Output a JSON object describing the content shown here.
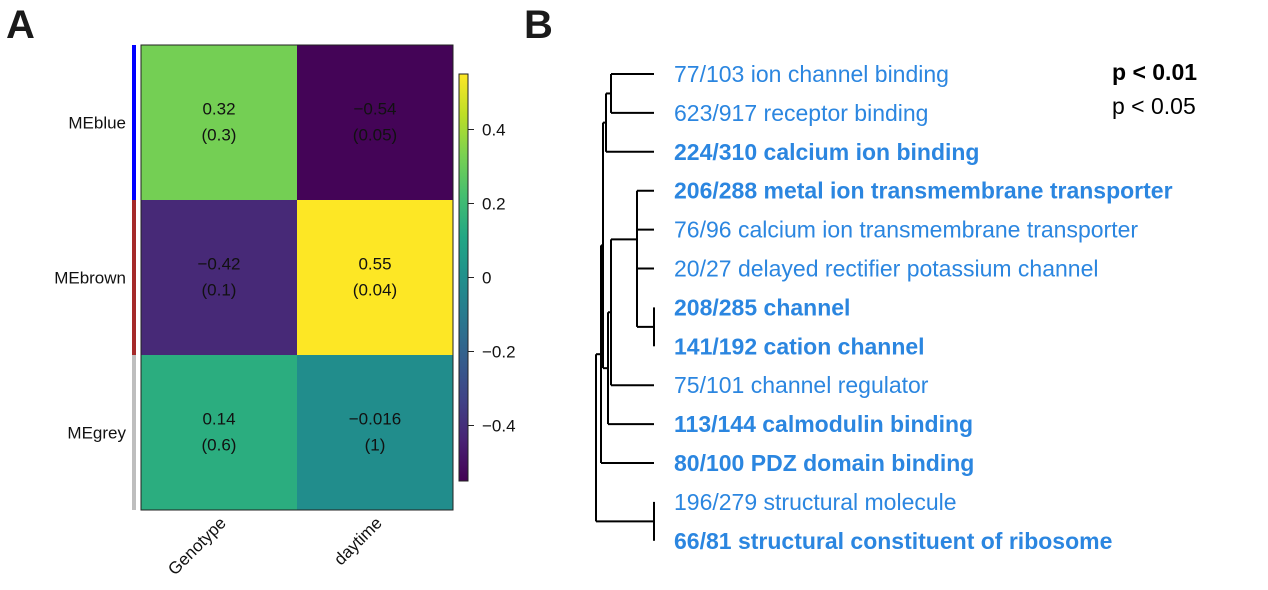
{
  "panels": {
    "a_label": "A",
    "b_label": "B"
  },
  "chart_data": [
    {
      "type": "heatmap",
      "rows": [
        "MEblue",
        "MEbrown",
        "MEgrey"
      ],
      "row_colors": [
        "#0000ff",
        "#a52a2a",
        "#bebebe"
      ],
      "columns": [
        "Genotype",
        "daytime"
      ],
      "values": [
        [
          0.32,
          -0.54
        ],
        [
          -0.42,
          0.55
        ],
        [
          0.14,
          -0.016
        ]
      ],
      "value_labels": [
        [
          "0.32",
          "−0.54"
        ],
        [
          "−0.42",
          "0.55"
        ],
        [
          "0.14",
          "−0.016"
        ]
      ],
      "pvalue_labels": [
        [
          "(0.3)",
          "(0.05)"
        ],
        [
          "(0.1)",
          "(0.04)"
        ],
        [
          "(0.6)",
          "(1)"
        ]
      ],
      "colorbar": {
        "colormap": "viridis",
        "range": [
          -0.55,
          0.55
        ],
        "ticks": [
          0.4,
          0.2,
          0,
          -0.2,
          -0.4
        ],
        "tick_labels": [
          "0.4",
          "0.2",
          "0",
          "−0.2",
          "−0.4"
        ]
      }
    },
    {
      "type": "dendrogram",
      "terms": [
        {
          "label": "77/103 ion channel binding",
          "significant": "p < 0.05"
        },
        {
          "label": "623/917 receptor binding",
          "significant": "p < 0.05"
        },
        {
          "label": "224/310 calcium ion binding",
          "significant": "p < 0.01"
        },
        {
          "label": "206/288 metal ion transmembrane transporter",
          "significant": "p < 0.01"
        },
        {
          "label": "76/96 calcium ion transmembrane transporter",
          "significant": "p < 0.05"
        },
        {
          "label": "20/27 delayed rectifier potassium channel",
          "significant": "p < 0.05"
        },
        {
          "label": "208/285 channel",
          "significant": "p < 0.01"
        },
        {
          "label": "141/192 cation channel",
          "significant": "p < 0.01"
        },
        {
          "label": "75/101 channel regulator",
          "significant": "p < 0.05"
        },
        {
          "label": "113/144 calmodulin binding",
          "significant": "p < 0.01"
        },
        {
          "label": "80/100 PDZ domain binding",
          "significant": "p < 0.01"
        },
        {
          "label": "196/279 structural molecule",
          "significant": "p < 0.05"
        },
        {
          "label": "66/81 structural constituent of ribosome",
          "significant": "p < 0.01"
        }
      ],
      "legend": [
        "p < 0.01",
        "p < 0.05"
      ],
      "label_color": "#2b86e0"
    }
  ]
}
